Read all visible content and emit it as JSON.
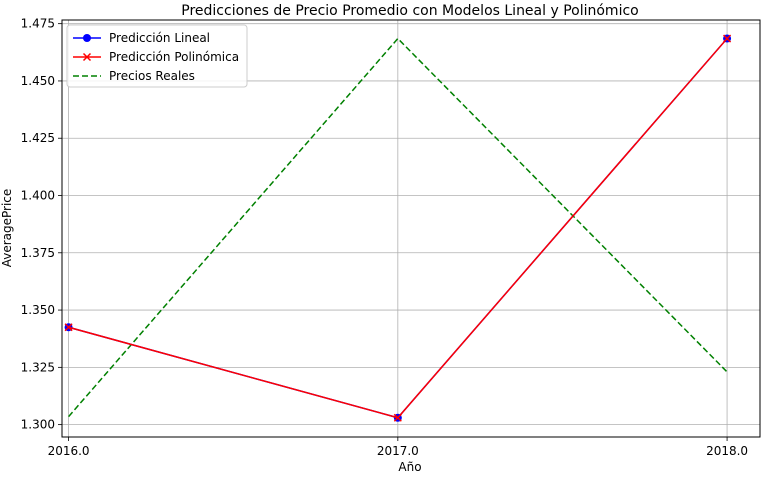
{
  "chart_data": {
    "type": "line",
    "title": "Predicciones de Precio Promedio con Modelos Lineal y Polinómico",
    "xlabel": "Año",
    "ylabel": "AveragePrice",
    "x": [
      2016.0,
      2017.0,
      2018.0
    ],
    "x_tick_labels": [
      "2016.0",
      "2017.0",
      "2018.0"
    ],
    "y_ticks": [
      1.3,
      1.325,
      1.35,
      1.375,
      1.4,
      1.425,
      1.45,
      1.475
    ],
    "y_tick_labels": [
      "1.300",
      "1.325",
      "1.350",
      "1.375",
      "1.400",
      "1.425",
      "1.450",
      "1.475"
    ],
    "xlim": [
      2015.98,
      2018.1
    ],
    "ylim": [
      1.2946,
      1.4766
    ],
    "grid": true,
    "legend_position": "top-left",
    "series": [
      {
        "name": "Predicción Lineal",
        "values": [
          1.3425,
          1.303,
          1.4685
        ],
        "color": "#0000ff",
        "linestyle": "solid",
        "marker": "circle"
      },
      {
        "name": "Predicción Polinómica",
        "values": [
          1.3425,
          1.303,
          1.4685
        ],
        "color": "#ff0000",
        "linestyle": "solid",
        "marker": "x"
      },
      {
        "name": "Precios Reales",
        "values": [
          1.3035,
          1.4685,
          1.323
        ],
        "color": "#008000",
        "linestyle": "dashed",
        "marker": "none"
      }
    ]
  }
}
